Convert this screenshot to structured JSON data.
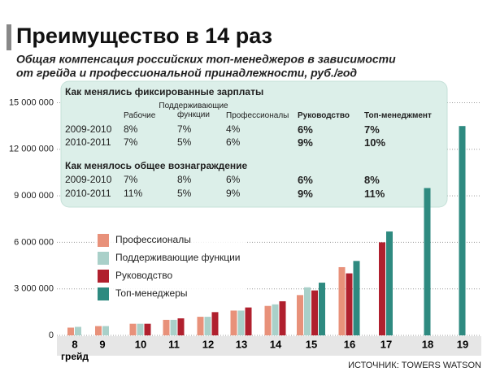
{
  "chart_data": {
    "type": "bar",
    "title": "Преимущество в 14 раз",
    "subtitle_lines": [
      "Общая компенсация российских топ-менеджеров в зависимости",
      "от грейда и профессиональной принадлежности, руб./год"
    ],
    "x_label": "грейд",
    "source": "ИСТОЧНИК: TOWERS WATSON",
    "categories": [
      "8",
      "9",
      "10",
      "11",
      "12",
      "13",
      "14",
      "15",
      "16",
      "17",
      "18",
      "19"
    ],
    "series": [
      {
        "name": "Профессионалы",
        "color": "#e8917a",
        "values": [
          500000,
          600000,
          750000,
          1000000,
          1200000,
          1600000,
          1900000,
          2600000,
          4400000,
          null,
          null,
          null
        ]
      },
      {
        "name": "Поддерживающие функции",
        "color": "#a9d0c9",
        "values": [
          550000,
          600000,
          750000,
          1000000,
          1200000,
          1600000,
          2000000,
          3100000,
          null,
          null,
          null,
          null
        ]
      },
      {
        "name": "Руководство",
        "color": "#b0202e",
        "values": [
          null,
          null,
          750000,
          1100000,
          1500000,
          1800000,
          2200000,
          2900000,
          4000000,
          6000000,
          null,
          null
        ]
      },
      {
        "name": "Топ-менеджеры",
        "color": "#2e8a80",
        "values": [
          null,
          null,
          null,
          null,
          null,
          null,
          null,
          3400000,
          4800000,
          6700000,
          9500000,
          13500000
        ]
      }
    ],
    "ylim": [
      0,
      15500000
    ],
    "yticks": [
      0,
      {
        "value": 3000000,
        "label": "3 000 000"
      },
      {
        "value": 6000000,
        "label": "6 000 000"
      },
      {
        "value": 9000000,
        "label": "9 000 000"
      },
      {
        "value": 12000000,
        "label": "12 000 000"
      },
      {
        "value": 15000000,
        "label": "15 000 000"
      }
    ],
    "grid": true,
    "table": {
      "headers": [
        "Рабочие",
        "Поддерживающие функции",
        "Профессионалы",
        "Руководство",
        "Топ-менеджмент"
      ],
      "sections": [
        {
          "title": "Как менялись фиксированные зарплаты",
          "rows": [
            [
              "2009-2010",
              "8%",
              "7%",
              "4%",
              "6%",
              "7%"
            ],
            [
              "2010-2011",
              "7%",
              "5%",
              "6%",
              "9%",
              "10%"
            ]
          ]
        },
        {
          "title": "Как менялось общее вознаграждение",
          "rows": [
            [
              "2009-2010",
              "7%",
              "8%",
              "6%",
              "6%",
              "8%"
            ],
            [
              "2010-2011",
              "11%",
              "5%",
              "9%",
              "9%",
              "11%"
            ]
          ]
        }
      ]
    }
  }
}
